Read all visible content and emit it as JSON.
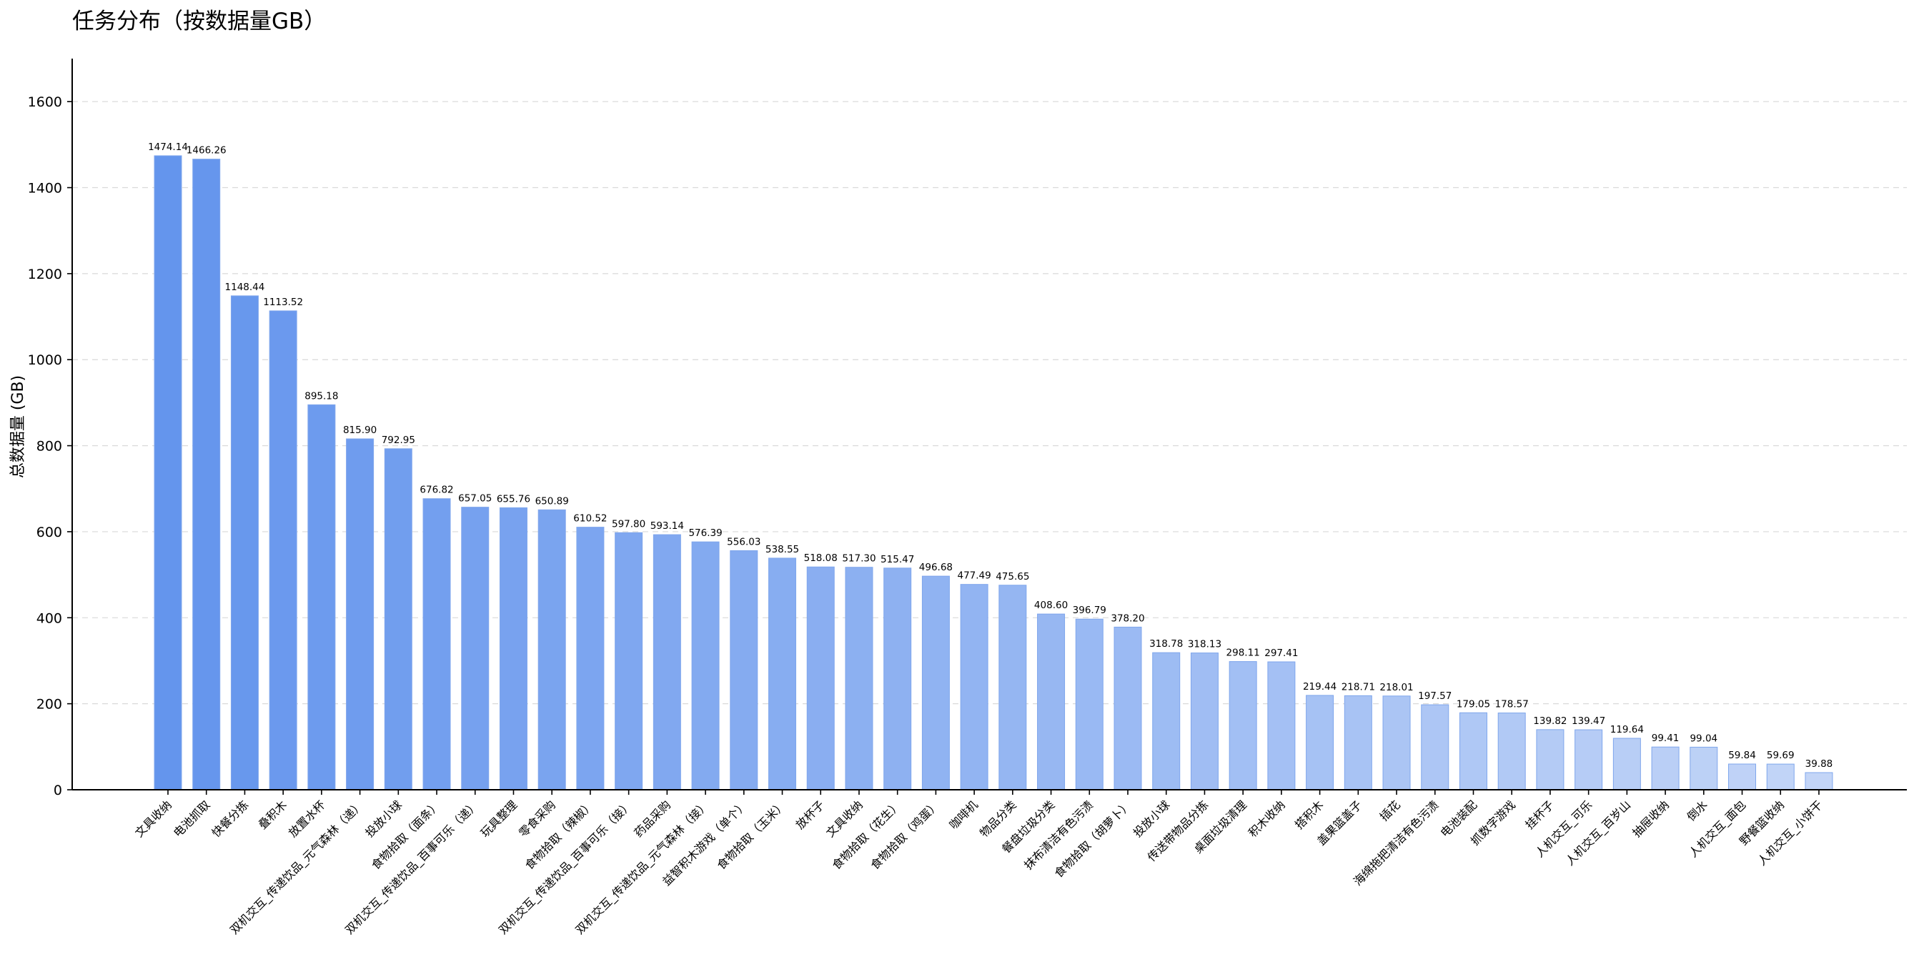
{
  "chart_data": {
    "type": "bar",
    "title": "任务分布（按数据量GB）",
    "xlabel": "",
    "ylabel": "总数据量 (GB)",
    "ylim": [
      0,
      1700
    ],
    "yticks": [
      "0",
      "200",
      "400",
      "600",
      "800",
      "1000",
      "1200",
      "1400",
      "1600"
    ],
    "grid": "horizontal dashed",
    "bar_color_start": "#6495ED",
    "bar_color_end": "#C3D5F7",
    "bar_edge_color": "#7FA6EC",
    "categories": [
      "文具收纳",
      "电池抓取",
      "快餐分拣",
      "叠积木",
      "放置水杯",
      "双机交互_传递饮品_元气森林（递）",
      "投放小球",
      "食物拾取（面条）",
      "双机交互_传递饮品_百事可乐（递）",
      "玩具整理",
      "零食采购",
      "食物拾取（辣椒）",
      "双机交互_传递饮品_百事可乐（接）",
      "药品采购",
      "双机交互_传递饮品_元气森林（接）",
      "益智积木游戏（单个）",
      "食物拾取（玉米）",
      "放杯子",
      "文具收纳",
      "食物拾取（花生）",
      "食物拾取（鸡蛋）",
      "咖啡机",
      "物品分类",
      "餐盘垃圾分类",
      "抹布清洁有色污渍",
      "食物拾取（胡萝卜）",
      "投放小球",
      "传送带物品分拣",
      "桌面垃圾清理",
      "积木收纳",
      "搭积木",
      "盖果篮盖子",
      "插花",
      "海绵拖把清洁有色污渍",
      "电池装配",
      "抓数字游戏",
      "挂杯子",
      "人机交互_可乐",
      "人机交互_百岁山",
      "抽屉收纳",
      "倒水",
      "人机交互_面包",
      "野餐篮收纳",
      "人机交互_小饼干"
    ],
    "values": [
      1474.14,
      1466.26,
      1148.44,
      1113.52,
      895.18,
      815.9,
      792.95,
      676.82,
      657.05,
      655.76,
      650.89,
      610.52,
      597.8,
      593.14,
      576.39,
      556.03,
      538.55,
      518.08,
      517.3,
      515.47,
      496.68,
      477.49,
      475.65,
      408.6,
      396.79,
      378.2,
      318.78,
      318.13,
      298.11,
      297.41,
      219.44,
      218.71,
      218.01,
      197.57,
      179.05,
      178.57,
      139.82,
      139.47,
      119.64,
      99.41,
      99.04,
      59.84,
      59.69,
      39.88
    ],
    "value_labels": [
      "1474.14",
      "1466.26",
      "1148.44",
      "1113.52",
      "895.18",
      "815.90",
      "792.95",
      "676.82",
      "657.05",
      "655.76",
      "650.89",
      "610.52",
      "597.80",
      "593.14",
      "576.39",
      "556.03",
      "538.55",
      "518.08",
      "517.30",
      "515.47",
      "496.68",
      "477.49",
      "475.65",
      "408.60",
      "396.79",
      "378.20",
      "318.78",
      "318.13",
      "298.11",
      "297.41",
      "219.44",
      "218.71",
      "218.01",
      "197.57",
      "179.05",
      "178.57",
      "139.82",
      "139.47",
      "119.64",
      "99.41",
      "99.04",
      "59.84",
      "59.69",
      "39.88"
    ]
  }
}
